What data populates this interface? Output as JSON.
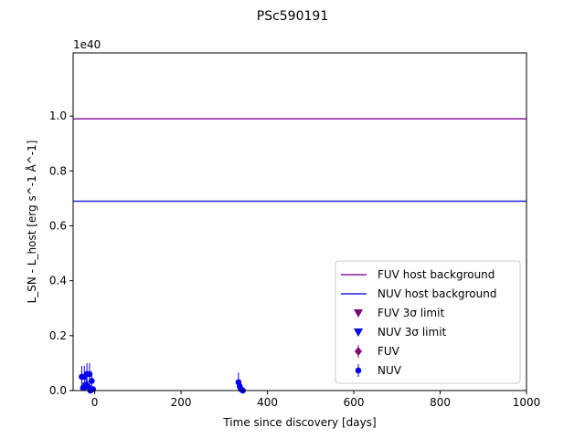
{
  "chart_data": {
    "type": "scatter",
    "title": "PSc590191",
    "xlabel": "Time since discovery [days]",
    "ylabel": "L_SN - L_host [erg s^-1 Å^-1]",
    "y_multiplier_label": "1e40",
    "xlim": [
      -50,
      1000
    ],
    "ylim": [
      0,
      1.23
    ],
    "xticks": [
      0,
      200,
      400,
      600,
      800,
      1000
    ],
    "yticks": [
      0.0,
      0.2,
      0.4,
      0.6,
      0.8,
      1.0
    ],
    "ytick_labels": [
      "0.0",
      "0.2",
      "0.4",
      "0.6",
      "0.8",
      "1.0"
    ],
    "grid": false,
    "legend_placement": "lower-right",
    "colors": {
      "fuv_host": "#8b1a9e",
      "nuv_host": "#2222dd",
      "fuv_limit": "#7b0a7b",
      "nuv_limit": "#0000ee",
      "fuv": "#7b0a7b",
      "nuv": "#0000ee"
    },
    "hlines": [
      {
        "name": "FUV host background",
        "y": 0.99,
        "color": "#8b1a9e"
      },
      {
        "name": "NUV host background",
        "y": 0.69,
        "color": "#2222dd"
      }
    ],
    "legend": [
      {
        "label": "FUV host background",
        "marker": "line",
        "color": "#8b1a9e"
      },
      {
        "label": "NUV host background",
        "marker": "line",
        "color": "#2222dd"
      },
      {
        "label": "FUV 3σ limit",
        "marker": "triangle-down",
        "color": "#7b0a7b"
      },
      {
        "label": "NUV 3σ limit",
        "marker": "triangle-down",
        "color": "#0000ee"
      },
      {
        "label": "FUV",
        "marker": "diamond-errorbar",
        "color": "#7b0a7b"
      },
      {
        "label": "NUV",
        "marker": "circle-errorbar",
        "color": "#0000ee"
      }
    ],
    "series": [
      {
        "name": "NUV",
        "color": "#0000ee",
        "points": [
          {
            "x": -30,
            "y": 0.05,
            "err": 0.04
          },
          {
            "x": -27,
            "y": 0.01,
            "err": 0.02
          },
          {
            "x": -24,
            "y": 0.05,
            "err": 0.04
          },
          {
            "x": -20,
            "y": 0.02,
            "err": 0.03
          },
          {
            "x": -18,
            "y": 0.06,
            "err": 0.04
          },
          {
            "x": -16,
            "y": 0.015,
            "err": 0.02
          },
          {
            "x": -12,
            "y": 0.06,
            "err": 0.04
          },
          {
            "x": -10,
            "y": 0.0,
            "err": 0.02
          },
          {
            "x": -7,
            "y": 0.035,
            "err": 0.03
          },
          {
            "x": -4,
            "y": 0.005,
            "err": 0.01
          },
          {
            "x": 333,
            "y": 0.03,
            "err": 0.035
          },
          {
            "x": 336,
            "y": 0.015,
            "err": 0.025
          },
          {
            "x": 339,
            "y": 0.005,
            "err": 0.02
          },
          {
            "x": 343,
            "y": 0.0,
            "err": 0.01
          }
        ]
      }
    ]
  }
}
